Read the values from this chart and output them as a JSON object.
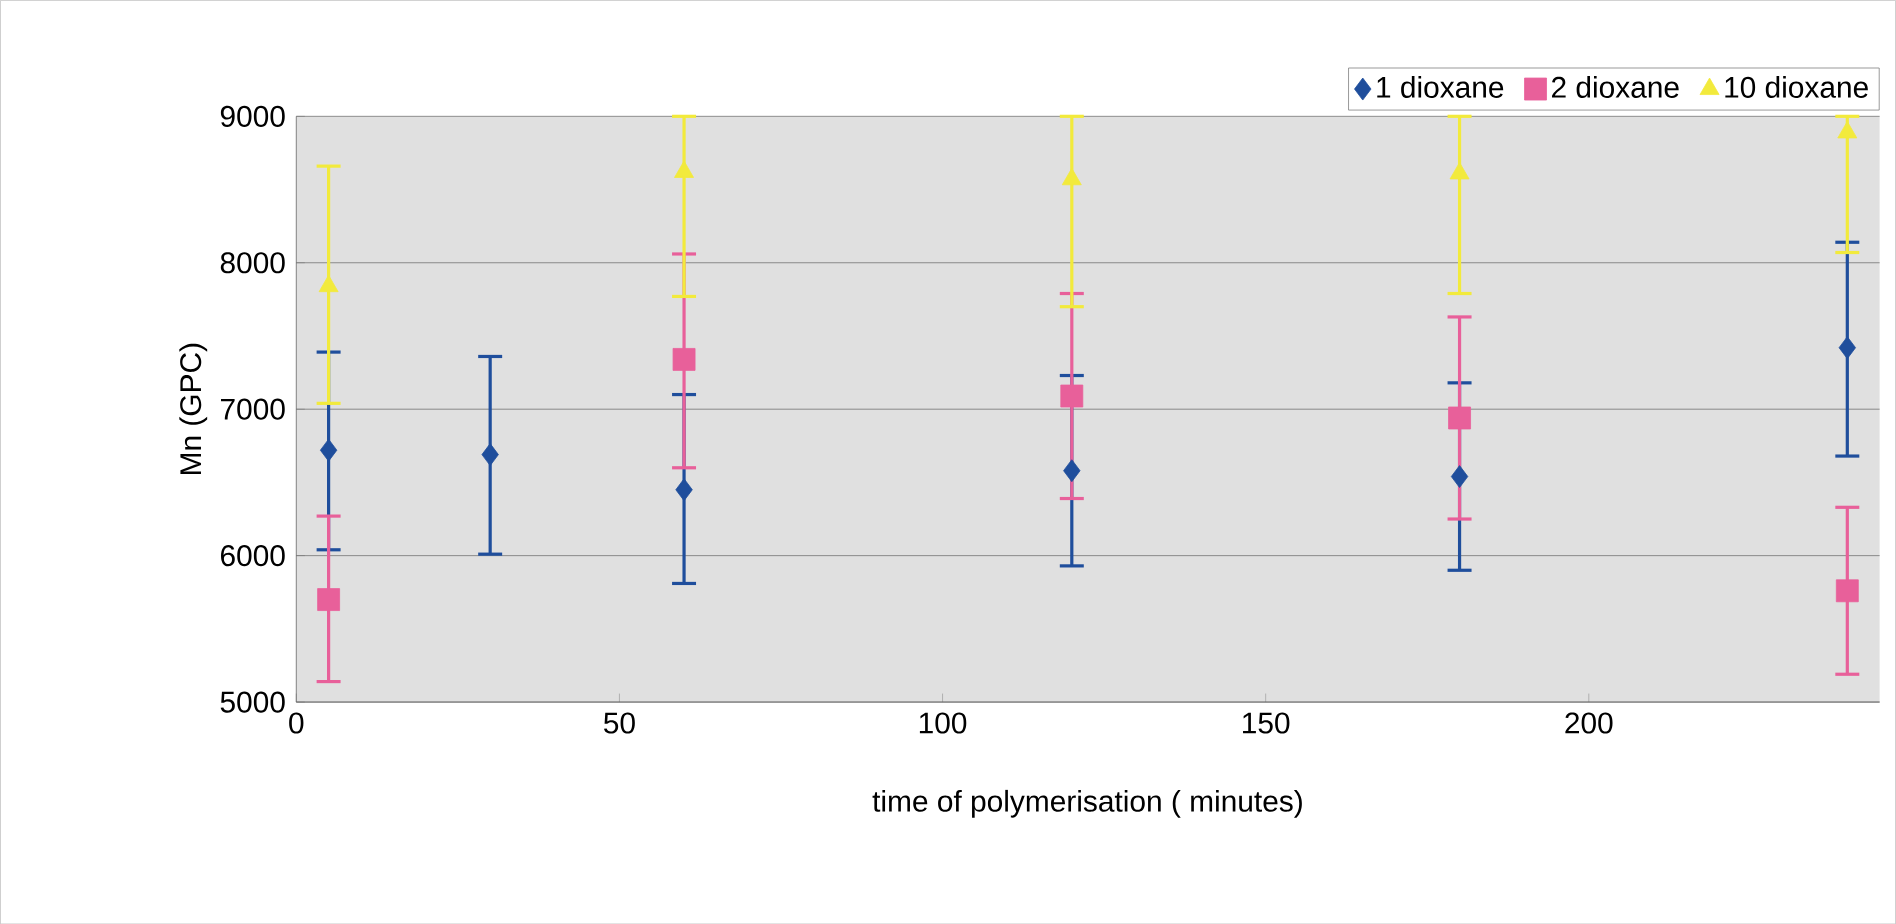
{
  "chart_data": {
    "type": "scatter",
    "xlabel": "time of polymerisation ( minutes)",
    "ylabel": "Mn (GPC)",
    "xlim": [
      0,
      245
    ],
    "xticks": [
      0,
      50,
      100,
      150,
      200
    ],
    "ylim": [
      5000,
      9000
    ],
    "yticks": [
      5000,
      6000,
      7000,
      8000,
      9000
    ],
    "grid": "y",
    "legend": "top right",
    "series": [
      {
        "name": "1 dioxane",
        "color": "#1f4e9c",
        "marker": "diamond",
        "x": [
          5,
          30,
          60,
          120,
          180,
          240
        ],
        "values": [
          6720,
          6690,
          6450,
          6580,
          6540,
          7420
        ],
        "errors": [
          [
            6040,
            7390
          ],
          [
            6010,
            7360
          ],
          [
            5810,
            7100
          ],
          [
            5930,
            7230
          ],
          [
            5900,
            7180
          ],
          [
            6680,
            8140
          ]
        ]
      },
      {
        "name": "2 dioxane",
        "color": "#e8609a",
        "marker": "square",
        "x": [
          5,
          60,
          120,
          180,
          240
        ],
        "values": [
          5700,
          7340,
          7090,
          6940,
          5760
        ],
        "errors": [
          [
            5140,
            6270
          ],
          [
            6600,
            8060
          ],
          [
            6390,
            7790
          ],
          [
            6250,
            7630
          ],
          [
            5190,
            6330
          ]
        ]
      },
      {
        "name": "10 dioxane",
        "color": "#f2ea3c",
        "marker": "triangle",
        "x": [
          5,
          60,
          120,
          180,
          240
        ],
        "values": [
          7840,
          8620,
          8570,
          8610,
          8890
        ],
        "errors": [
          [
            7040,
            8660
          ],
          [
            7770,
            9000
          ],
          [
            7700,
            9000
          ],
          [
            7790,
            9000
          ],
          [
            8070,
            9000
          ]
        ]
      }
    ]
  }
}
